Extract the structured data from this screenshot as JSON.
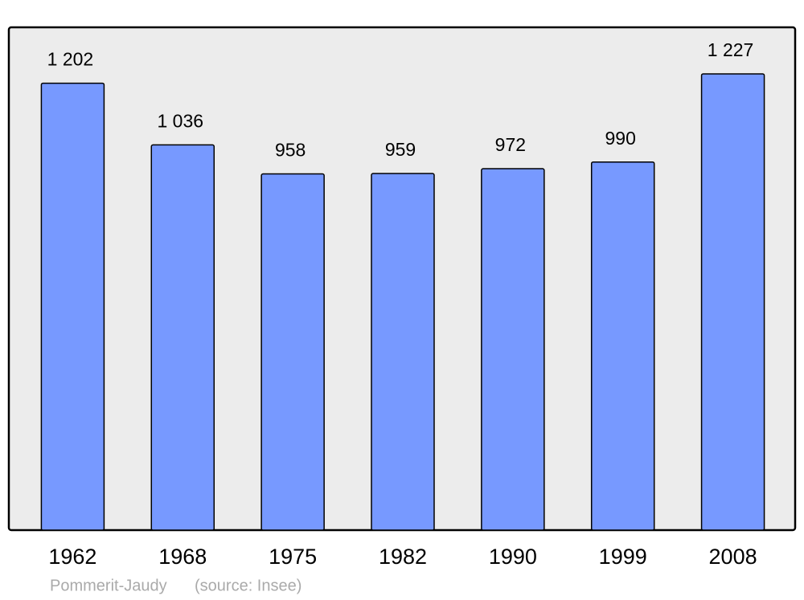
{
  "chart_data": {
    "type": "bar",
    "categories": [
      "1962",
      "1968",
      "1975",
      "1982",
      "1990",
      "1999",
      "2008"
    ],
    "values": [
      1202,
      1036,
      958,
      959,
      972,
      990,
      1227
    ],
    "value_labels": [
      "1 202",
      "1 036",
      "958",
      "959",
      "972",
      "990",
      "1 227"
    ],
    "color": "#7799ff",
    "caption": "Pommerit-Jaudy",
    "source": "(source: Insee)"
  }
}
